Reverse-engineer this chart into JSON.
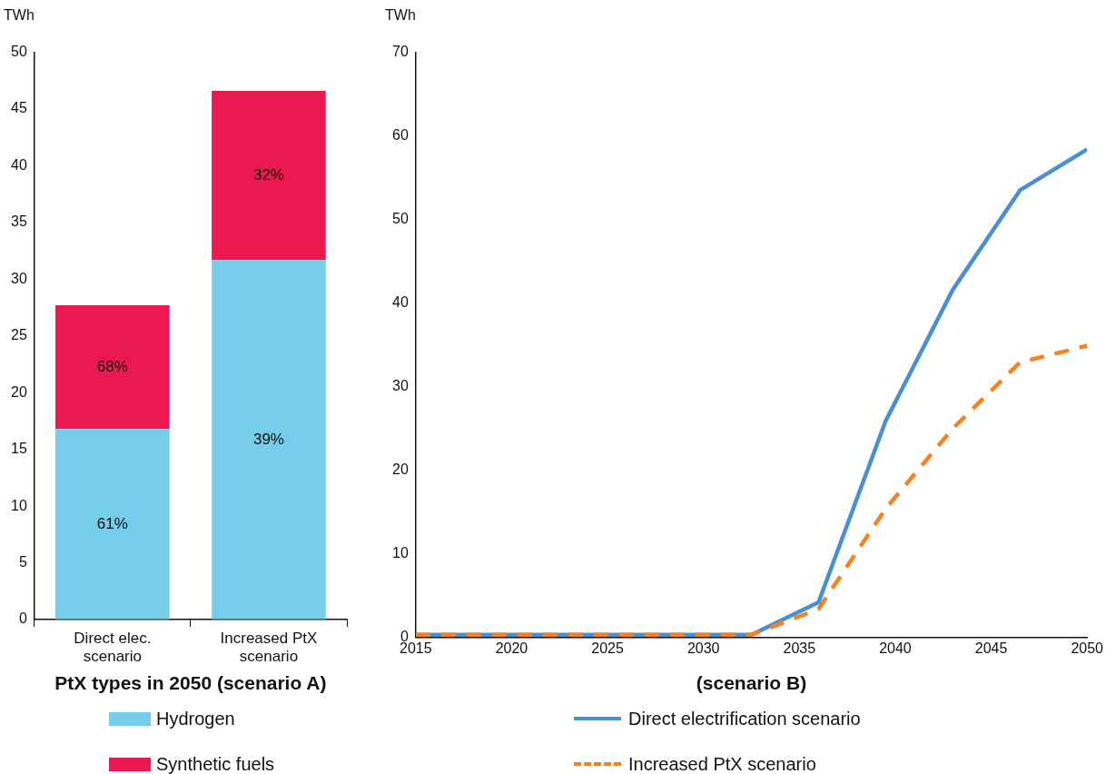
{
  "chart_data": [
    {
      "type": "bar",
      "stacked": true,
      "xlabel": "PtX types in 2050 (scenario A)",
      "ylabel": "TWh",
      "categories": [
        "Direct elec. scenario",
        "Increased PtX scenario"
      ],
      "series": [
        {
          "name": "Hydrogen",
          "color": "#76cde9",
          "values": [
            16.8,
            31.7
          ]
        },
        {
          "name": "Synthetic fuels",
          "color": "#ec1951",
          "values": [
            10.9,
            14.9
          ]
        }
      ],
      "annotations": [
        "61%",
        "68%",
        "39%",
        "32%"
      ],
      "ylim": [
        0,
        50
      ],
      "yticks": [
        0,
        5,
        10,
        15,
        20,
        25,
        30,
        35,
        40,
        45,
        50
      ],
      "legend": "bottom"
    },
    {
      "type": "line",
      "xlabel": "(scenario B)",
      "ylabel": "TWh",
      "marker": "none",
      "x": [
        2015,
        2018.5,
        2022,
        2025.5,
        2029,
        2032.5,
        2036,
        2039.5,
        2043,
        2046.5,
        2050
      ],
      "series": [
        {
          "name": "Direct electrification scenario",
          "color": "#4a8fd1",
          "line_style": "solid",
          "values": [
            0.3,
            0.3,
            0.3,
            0.3,
            0.3,
            0.3,
            4.2,
            25.9,
            41.6,
            53.5,
            58.4
          ]
        },
        {
          "name": "Increased PtX scenario",
          "color": "#f5821f",
          "line_style": "dashed",
          "values": [
            0.3,
            0.3,
            0.3,
            0.3,
            0.3,
            0.3,
            3.4,
            15.4,
            25.0,
            32.9,
            34.9
          ]
        }
      ],
      "xlim": [
        2015,
        2050
      ],
      "xticks": [
        2015,
        2020,
        2025,
        2030,
        2035,
        2040,
        2045,
        2050
      ],
      "ylim": [
        0,
        70
      ],
      "yticks": [
        0,
        10,
        20,
        30,
        40,
        50,
        60,
        70
      ],
      "legend": "bottom"
    }
  ]
}
